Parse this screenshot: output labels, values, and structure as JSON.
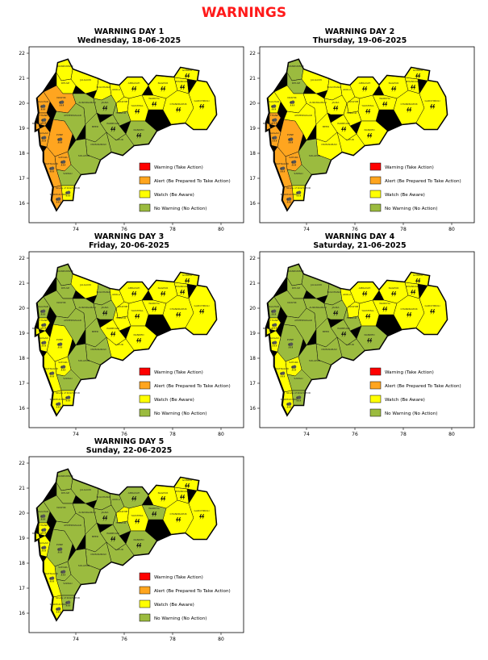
{
  "page_title": "WARNINGS",
  "colors": {
    "title": "#ff1a1a",
    "warning": "#ff0000",
    "alert": "#ffa51f",
    "watch": "#ffff00",
    "no_warning": "#9bbb3f"
  },
  "legend": [
    {
      "label": "Warning (Take Action)",
      "color": "#ff0000"
    },
    {
      "label": "Alert (Be Prepared To Take Action)",
      "color": "#ffa51f"
    },
    {
      "label": "Watch (Be Aware)",
      "color": "#ffff00"
    },
    {
      "label": "No Warning (No Action)",
      "color": "#9bbb3f"
    }
  ],
  "axes": {
    "x_ticks": [
      "74",
      "76",
      "78",
      "80"
    ],
    "y_ticks": [
      "22",
      "21",
      "20",
      "19",
      "18",
      "17",
      "16"
    ]
  },
  "district_labels": [
    "NANDURBAR",
    "DHULE",
    "JALGAON",
    "BULDHANA",
    "AKOLA",
    "AMRAVATI",
    "NAGPUR",
    "BHANDARA",
    "GONDIA",
    "WARDHA",
    "WASHIM",
    "YAVATMAL",
    "CHANDRAPUR",
    "GADCHIROLI",
    "NASHIK",
    "PALGHAR",
    "THANE",
    "MUMBAI",
    "RAIGAD",
    "PUNE",
    "AHMEDNAGAR",
    "AURANGABAD",
    "JALNA",
    "HINGOLI",
    "NANDED",
    "PARBHANI",
    "BEED",
    "LATUR",
    "OSMANABAD",
    "SOLAPUR",
    "SATARA",
    "SANGLI",
    "RATNAGIRI",
    "SINDHUDURG",
    "Ghats of KOLHAPUR"
  ],
  "days": [
    {
      "title": "WARNING DAY 1",
      "date": "Wednesday, 18-06-2025"
    },
    {
      "title": "WARNING DAY 2",
      "date": "Thursday, 19-06-2025"
    },
    {
      "title": "WARNING DAY 3",
      "date": "Friday, 20-06-2025"
    },
    {
      "title": "WARNING DAY 4",
      "date": "Saturday, 21-06-2025"
    },
    {
      "title": "WARNING DAY 5",
      "date": "Sunday, 22-06-2025"
    }
  ]
}
